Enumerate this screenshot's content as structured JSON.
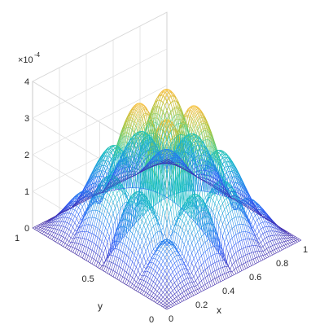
{
  "chart_data": {
    "type": "surface-mesh",
    "title": "",
    "xlabel": "x",
    "ylabel": "y",
    "zlabel": "",
    "xlim": [
      0,
      1
    ],
    "ylim": [
      0,
      1
    ],
    "zlim": [
      0,
      0.0004
    ],
    "x_ticks": [
      "0",
      "0.2",
      "0.4",
      "0.6",
      "0.8",
      "1"
    ],
    "y_ticks": [
      "0",
      "0.5",
      "1"
    ],
    "z_ticks": [
      "0",
      "1",
      "2",
      "3",
      "4"
    ],
    "z_exponent_label": "×10",
    "z_exponent": "-4",
    "colormap": [
      "#3e26a8",
      "#2f5ef9",
      "#1f93e6",
      "#14bcc6",
      "#48cb86",
      "#a8c53a",
      "#f4ba3a",
      "#f9fb15"
    ],
    "grid": true,
    "description_values": {
      "peak_count_per_axis": 4,
      "max_value": 0.0004
    }
  }
}
